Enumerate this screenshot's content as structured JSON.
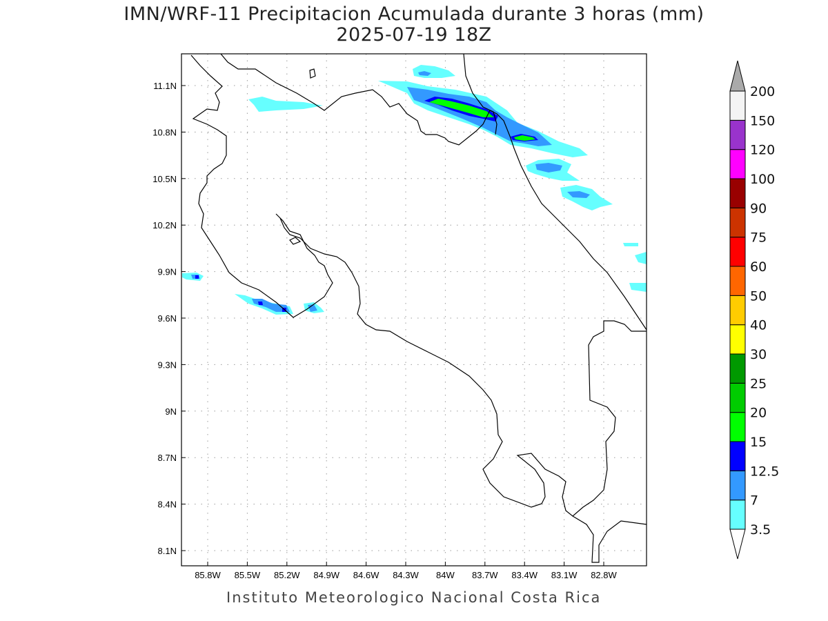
{
  "title": {
    "line1": "IMN/WRF-11 Precipitacion Acumulada durante 3 horas (mm)",
    "line2": "2025-07-19 18Z"
  },
  "footer": "Instituto Meteorologico Nacional Costa Rica",
  "map": {
    "lat_ticks": [
      "11.1N",
      "10.8N",
      "10.5N",
      "10.2N",
      "9.9N",
      "9.6N",
      "9.3N",
      "9N",
      "8.7N",
      "8.4N",
      "8.1N"
    ],
    "lon_ticks": [
      "85.8W",
      "85.5W",
      "85.2W",
      "84.9W",
      "84.6W",
      "84.3W",
      "84W",
      "83.7W",
      "83.4W",
      "83.1W",
      "82.8W"
    ]
  },
  "colorbar": {
    "levels": [
      "3.5",
      "7",
      "12.5",
      "15",
      "20",
      "25",
      "30",
      "40",
      "50",
      "60",
      "75",
      "90",
      "100",
      "120",
      "150",
      "200"
    ],
    "colors": [
      "#66ffff",
      "#3399ff",
      "#0000ff",
      "#00ff00",
      "#00cc00",
      "#009900",
      "#ffff00",
      "#ffcc00",
      "#ff6600",
      "#ff0000",
      "#cc3300",
      "#990000",
      "#ff00ff",
      "#9933cc",
      "#f4f4f4"
    ],
    "over_color": "#aaaaaa",
    "under_color": "#ffffff"
  }
}
